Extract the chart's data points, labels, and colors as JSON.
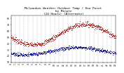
{
  "title": "Milwaukee Weather Outdoor Temp / Dew Point\nby Minute\n(24 Hours) (Alternate)",
  "title_fontsize": 3.2,
  "bg_color": "#ffffff",
  "plot_bg": "#ffffff",
  "grid_color": "#888888",
  "x_min": 0,
  "x_max": 1440,
  "y_min": 10,
  "y_max": 85,
  "y_ticks": [
    10,
    20,
    30,
    40,
    50,
    60,
    70,
    80
  ],
  "x_ticks": [
    0,
    60,
    120,
    180,
    240,
    300,
    360,
    420,
    480,
    540,
    600,
    660,
    720,
    780,
    840,
    900,
    960,
    1020,
    1080,
    1140,
    1200,
    1260,
    1320,
    1380,
    1440
  ],
  "x_tick_labels": [
    "0",
    "1",
    "2",
    "3",
    "4",
    "5",
    "6",
    "7",
    "8",
    "9",
    "10",
    "11",
    "12",
    "13",
    "14",
    "15",
    "16",
    "17",
    "18",
    "19",
    "20",
    "21",
    "22",
    "23",
    "24"
  ],
  "temp_color": "#cc0000",
  "dew_color": "#0000cc",
  "tick_fontsize": 2.2,
  "marker_size": 0.5,
  "noise_seed": 7
}
